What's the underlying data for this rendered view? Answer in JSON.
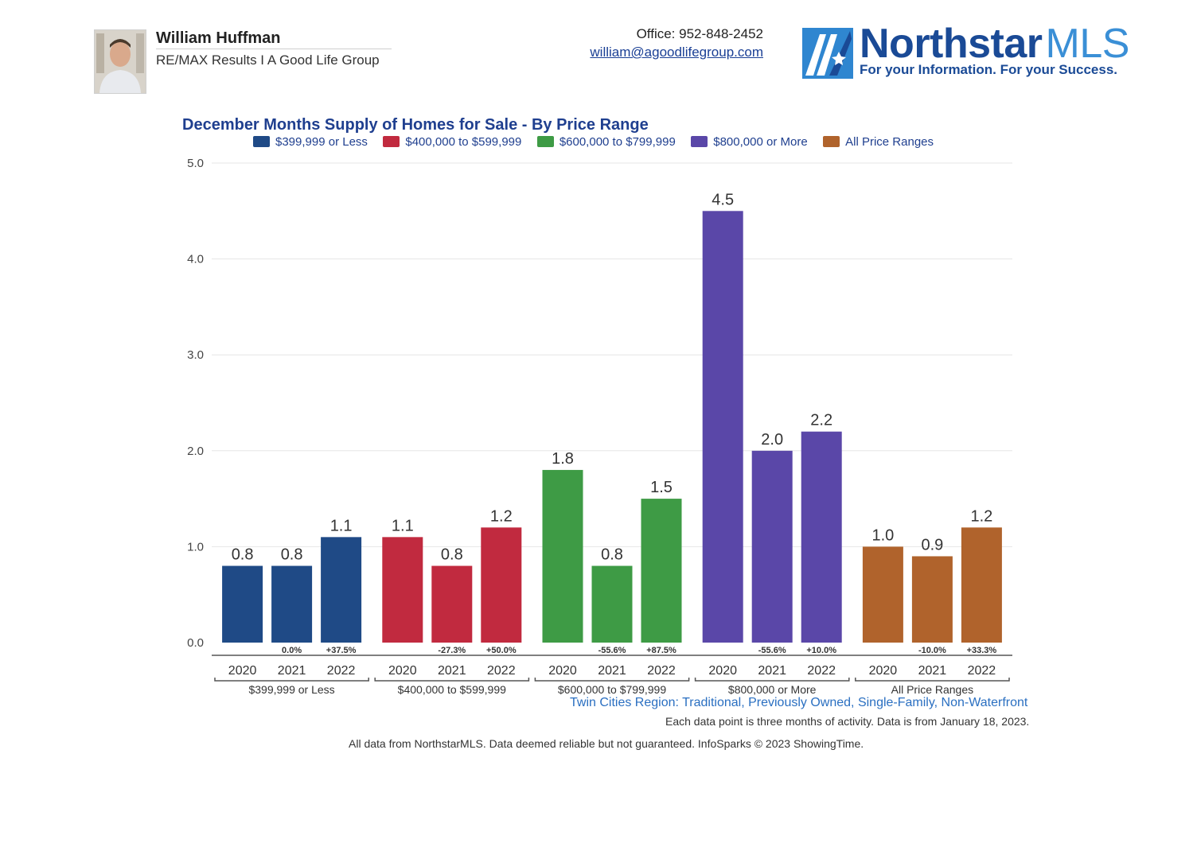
{
  "agent": {
    "name": "William Huffman",
    "company": "RE/MAX Results I A Good Life Group",
    "office": "Office: 952-848-2452",
    "email": "william@agoodlifegroup.com"
  },
  "logo": {
    "north": "Northstar",
    "mls": "MLS",
    "tagline": "For your Information. For your Success."
  },
  "footer": {
    "region": "Twin Cities Region: Traditional, Previously Owned, Single-Family, Non-Waterfront",
    "note": "Each data point is three months of activity. Data is from January 18, 2023.",
    "disclaimer": "All data from NorthstarMLS. Data deemed reliable but not guaranteed. InfoSparks © 2023 ShowingTime."
  },
  "chart_data": {
    "type": "bar",
    "title": "December Months Supply of Homes for Sale - By Price Range",
    "ylim": [
      0,
      5
    ],
    "yticks": [
      "0.0",
      "1.0",
      "2.0",
      "3.0",
      "4.0",
      "5.0"
    ],
    "grid": true,
    "legend_position": "top",
    "categories": [
      "2020",
      "2021",
      "2022"
    ],
    "series": [
      {
        "name": "$399,999 or Less",
        "color": "#1f4a86",
        "values": [
          0.8,
          0.8,
          1.1
        ],
        "labels": [
          "0.8",
          "0.8",
          "1.1"
        ],
        "changes": [
          "",
          "0.0%",
          "+37.5%"
        ]
      },
      {
        "name": "$400,000 to $599,999",
        "color": "#c12a3f",
        "values": [
          1.1,
          0.8,
          1.2
        ],
        "labels": [
          "1.1",
          "0.8",
          "1.2"
        ],
        "changes": [
          "",
          "-27.3%",
          "+50.0%"
        ]
      },
      {
        "name": "$600,000 to $799,999",
        "color": "#3e9b45",
        "values": [
          1.8,
          0.8,
          1.5
        ],
        "labels": [
          "1.8",
          "0.8",
          "1.5"
        ],
        "changes": [
          "",
          "-55.6%",
          "+87.5%"
        ]
      },
      {
        "name": "$800,000 or More",
        "color": "#5a47a8",
        "values": [
          4.5,
          2.0,
          2.2
        ],
        "labels": [
          "4.5",
          "2.0",
          "2.2"
        ],
        "changes": [
          "",
          "-55.6%",
          "+10.0%"
        ]
      },
      {
        "name": "All Price Ranges",
        "color": "#b0632c",
        "values": [
          1.0,
          0.9,
          1.2
        ],
        "labels": [
          "1.0",
          "0.9",
          "1.2"
        ],
        "changes": [
          "",
          "-10.0%",
          "+33.3%"
        ]
      }
    ]
  }
}
